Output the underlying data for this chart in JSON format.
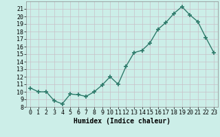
{
  "x": [
    0,
    1,
    2,
    3,
    4,
    5,
    6,
    7,
    8,
    9,
    10,
    11,
    12,
    13,
    14,
    15,
    16,
    17,
    18,
    19,
    20,
    21,
    22,
    23
  ],
  "y": [
    10.5,
    10.0,
    10.0,
    8.8,
    8.4,
    9.7,
    9.6,
    9.4,
    10.0,
    10.9,
    12.0,
    11.0,
    13.4,
    15.2,
    15.5,
    16.5,
    18.3,
    19.2,
    20.4,
    21.3,
    20.2,
    19.3,
    17.2,
    15.2
  ],
  "xlabel": "Humidex (Indice chaleur)",
  "xlim": [
    -0.5,
    23.5
  ],
  "ylim": [
    8,
    22
  ],
  "yticks": [
    8,
    9,
    10,
    11,
    12,
    13,
    14,
    15,
    16,
    17,
    18,
    19,
    20,
    21
  ],
  "xticks": [
    0,
    1,
    2,
    3,
    4,
    5,
    6,
    7,
    8,
    9,
    10,
    11,
    12,
    13,
    14,
    15,
    16,
    17,
    18,
    19,
    20,
    21,
    22,
    23
  ],
  "line_color": "#2d7a6a",
  "marker": "+",
  "marker_size": 4,
  "marker_lw": 1.2,
  "line_width": 1.0,
  "bg_color": "#cceee8",
  "grid_color": "#c8c0c8",
  "font_color": "#000000",
  "font_family": "monospace",
  "tick_fontsize": 6,
  "xlabel_fontsize": 7
}
